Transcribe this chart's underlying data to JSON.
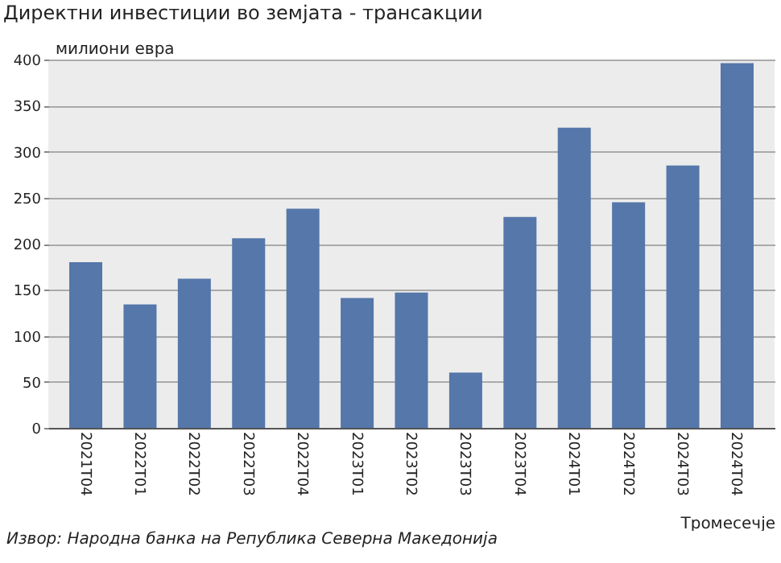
{
  "chart_data": {
    "type": "bar",
    "title": "Директни инвестиции во земјата - трансакции",
    "ylabel": "милиони евра",
    "xlabel": "Тромесечје",
    "annotations": [
      "Извор: Народна банка на Република Северна Македонија"
    ],
    "categories": [
      "2021Т04",
      "2022Т01",
      "2022Т02",
      "2022Т03",
      "2022Т04",
      "2023Т01",
      "2023Т02",
      "2023Т03",
      "2023Т04",
      "2024Т01",
      "2024Т02",
      "2024Т03",
      "2024Т04"
    ],
    "values": [
      180,
      134,
      162,
      206,
      238,
      141,
      147,
      60,
      229,
      326,
      245,
      285,
      396
    ],
    "color": "#5577aa",
    "ylim": [
      0,
      400
    ],
    "yticks": [
      0,
      50,
      100,
      150,
      200,
      250,
      300,
      350,
      400
    ],
    "grid": "y"
  }
}
